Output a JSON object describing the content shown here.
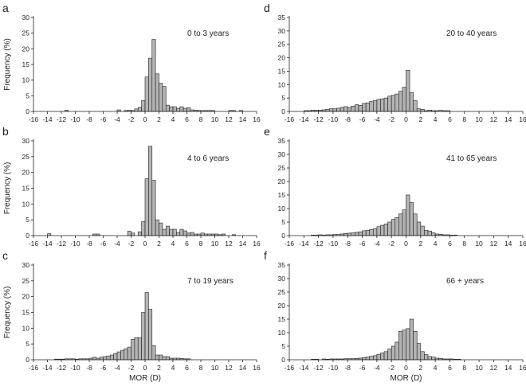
{
  "figure": {
    "xlabel": "MOR (D)",
    "ylabel": "Frequency (%)",
    "bar_color": "#b4b4b4",
    "edge_color": "#231f20"
  },
  "chart_data": [
    {
      "type": "bar",
      "panel": "a",
      "label": "0 to 3 years",
      "xlim": [
        -16,
        16
      ],
      "ylim": [
        0,
        30
      ],
      "xticks": [
        -16,
        -14,
        -12,
        -10,
        -8,
        -6,
        -4,
        -2,
        0,
        2,
        4,
        6,
        8,
        10,
        12,
        14,
        16
      ],
      "yticks": [
        0,
        5,
        10,
        15,
        20,
        25,
        30
      ],
      "bin_width": 0.5,
      "x": [
        -11.25,
        -3.75,
        -2.75,
        -2.25,
        -1.75,
        -1.25,
        -0.75,
        -0.25,
        0.25,
        0.75,
        1.25,
        1.75,
        2.25,
        2.75,
        3.25,
        3.75,
        4.25,
        4.75,
        5.25,
        5.75,
        6.25,
        6.75,
        7.25,
        7.75,
        8.25,
        8.75,
        9.25,
        9.75,
        12.25,
        12.75,
        13.75
      ],
      "values": [
        0.4,
        0.5,
        0.3,
        0.4,
        0.3,
        0.8,
        1.3,
        3.5,
        11,
        17,
        23,
        12,
        9,
        8,
        2,
        1.5,
        1.5,
        1,
        1.5,
        1,
        1.2,
        0.5,
        0.4,
        0.3,
        0.3,
        0.3,
        0.3,
        0.3,
        0.3,
        0.3,
        0.3
      ]
    },
    {
      "type": "bar",
      "panel": "b",
      "label": "4 to 6 years",
      "xlim": [
        -16,
        16
      ],
      "ylim": [
        0,
        30
      ],
      "xticks": [
        -16,
        -14,
        -12,
        -10,
        -8,
        -6,
        -4,
        -2,
        0,
        2,
        4,
        6,
        8,
        10,
        12,
        14,
        16
      ],
      "yticks": [
        0,
        5,
        10,
        15,
        20,
        25,
        30
      ],
      "bin_width": 0.5,
      "x": [
        -13.75,
        -7.25,
        -6.75,
        -2.25,
        -1.75,
        -0.75,
        -0.25,
        0.25,
        0.75,
        1.25,
        1.75,
        2.25,
        2.75,
        3.25,
        3.75,
        4.25,
        4.75,
        5.25,
        5.75,
        6.25,
        6.75,
        7.25,
        7.75,
        8.25,
        8.75,
        9.25,
        9.75,
        10.25,
        10.75,
        11.25,
        12.75
      ],
      "values": [
        0.6,
        0.5,
        0.5,
        1.4,
        0.8,
        1.2,
        4.5,
        18,
        28.3,
        17.5,
        5,
        4,
        2,
        3,
        2,
        2,
        1,
        2,
        1.5,
        0.8,
        1,
        0.5,
        0.5,
        0.8,
        0.5,
        0.5,
        0.5,
        0.5,
        0.3,
        0.5,
        0.3
      ]
    },
    {
      "type": "bar",
      "panel": "c",
      "label": "7 to 19 years",
      "xlim": [
        -16,
        16
      ],
      "ylim": [
        0,
        30
      ],
      "xticks": [
        -16,
        -14,
        -12,
        -10,
        -8,
        -6,
        -4,
        -2,
        0,
        2,
        4,
        6,
        8,
        10,
        12,
        14,
        16
      ],
      "yticks": [
        0,
        5,
        10,
        15,
        20,
        25,
        30
      ],
      "bin_width": 0.5,
      "x": [
        -12.75,
        -12.25,
        -11.75,
        -11.25,
        -10.75,
        -10.25,
        -9.75,
        -9.25,
        -8.75,
        -8.25,
        -7.75,
        -7.25,
        -6.75,
        -6.25,
        -5.75,
        -5.25,
        -4.75,
        -4.25,
        -3.75,
        -3.25,
        -2.75,
        -2.25,
        -1.75,
        -1.25,
        -0.75,
        -0.25,
        0.25,
        0.75,
        1.25,
        1.75,
        2.25,
        2.75,
        3.25,
        3.75,
        4.25,
        4.75,
        5.25,
        5.75,
        6.25
      ],
      "values": [
        0.2,
        0.2,
        0.2,
        0.3,
        0.3,
        0.3,
        0.2,
        0.3,
        0.3,
        0.3,
        0.5,
        0.8,
        0.5,
        0.8,
        1,
        1.2,
        1.5,
        2,
        2.5,
        3,
        3.5,
        4,
        6.5,
        7,
        7,
        15,
        21.3,
        16,
        4.5,
        1.5,
        1.5,
        1,
        1,
        0.5,
        0.5,
        0.5,
        0.4,
        0.3,
        0.3
      ]
    },
    {
      "type": "bar",
      "panel": "d",
      "label": "20 to 40 years",
      "xlim": [
        -16,
        16
      ],
      "ylim": [
        0,
        35
      ],
      "xticks": [
        -16,
        -14,
        -12,
        -10,
        -8,
        -6,
        -4,
        -2,
        0,
        2,
        4,
        6,
        8,
        10,
        12,
        14,
        16
      ],
      "yticks": [
        0,
        5,
        10,
        15,
        20,
        25,
        30,
        35
      ],
      "bin_width": 0.5,
      "x": [
        -13.75,
        -13.25,
        -12.75,
        -12.25,
        -11.75,
        -11.25,
        -10.75,
        -10.25,
        -9.75,
        -9.25,
        -8.75,
        -8.25,
        -7.75,
        -7.25,
        -6.75,
        -6.25,
        -5.75,
        -5.25,
        -4.75,
        -4.25,
        -3.75,
        -3.25,
        -2.75,
        -2.25,
        -1.75,
        -1.25,
        -0.75,
        -0.25,
        0.25,
        0.75,
        1.25,
        1.75,
        2.25,
        2.75,
        3.25,
        3.75,
        4.25,
        4.75,
        5.25,
        5.75
      ],
      "values": [
        0.3,
        0.3,
        0.5,
        0.5,
        0.5,
        0.6,
        0.8,
        1,
        1,
        1.2,
        1.5,
        1.8,
        1.5,
        2,
        2.5,
        2.3,
        3,
        3.2,
        3.7,
        4,
        4.5,
        4.7,
        5,
        5.7,
        6,
        6.5,
        7.5,
        9,
        15.3,
        7,
        4,
        1,
        0.8,
        0.3,
        0.5,
        0.3,
        0.3,
        0.4,
        0.3,
        0.3
      ]
    },
    {
      "type": "bar",
      "panel": "e",
      "label": "41 to 65 years",
      "xlim": [
        -16,
        16
      ],
      "ylim": [
        0,
        35
      ],
      "xticks": [
        -16,
        -14,
        -12,
        -10,
        -8,
        -6,
        -4,
        -2,
        0,
        2,
        4,
        6,
        8,
        10,
        12,
        14,
        16
      ],
      "yticks": [
        0,
        5,
        10,
        15,
        20,
        25,
        30,
        35
      ],
      "bin_width": 0.5,
      "x": [
        -12.75,
        -12.25,
        -11.75,
        -11.25,
        -10.75,
        -10.25,
        -9.75,
        -9.25,
        -8.75,
        -8.25,
        -7.75,
        -7.25,
        -6.75,
        -6.25,
        -5.75,
        -5.25,
        -4.75,
        -4.25,
        -3.75,
        -3.25,
        -2.75,
        -2.25,
        -1.75,
        -1.25,
        -0.75,
        -0.25,
        0.25,
        0.75,
        1.25,
        1.75,
        2.25,
        2.75,
        3.25,
        3.75,
        4.25,
        4.75,
        5.25,
        5.75,
        6.25,
        6.75
      ],
      "values": [
        0.2,
        0.2,
        0.3,
        0.2,
        0.3,
        0.3,
        0.4,
        0.4,
        0.6,
        0.8,
        0.9,
        1,
        1.2,
        1.4,
        1.8,
        2,
        2.2,
        2.5,
        3.3,
        3.8,
        4.3,
        5,
        6,
        6.7,
        8,
        9.5,
        15,
        12.2,
        8,
        5,
        3.5,
        2,
        1.7,
        1,
        0.6,
        0.5,
        0.3,
        0.3,
        0.2,
        0.2
      ]
    },
    {
      "type": "bar",
      "panel": "f",
      "label": "66 + years",
      "xlim": [
        -16,
        16
      ],
      "ylim": [
        0,
        35
      ],
      "xticks": [
        -16,
        -14,
        -12,
        -10,
        -8,
        -6,
        -4,
        -2,
        0,
        2,
        4,
        6,
        8,
        10,
        12,
        14,
        16
      ],
      "yticks": [
        0,
        5,
        10,
        15,
        20,
        25,
        30,
        35
      ],
      "bin_width": 0.5,
      "x": [
        -12.75,
        -12.25,
        -11.25,
        -10.75,
        -10.25,
        -9.75,
        -9.25,
        -8.75,
        -8.25,
        -7.75,
        -7.25,
        -6.75,
        -6.25,
        -5.75,
        -5.25,
        -4.75,
        -4.25,
        -3.75,
        -3.25,
        -2.75,
        -2.25,
        -1.75,
        -1.25,
        -0.75,
        -0.25,
        0.25,
        0.75,
        1.25,
        1.75,
        2.25,
        2.75,
        3.25,
        3.75,
        4.25,
        4.75,
        5.25,
        5.75,
        6.25,
        6.75,
        7.25
      ],
      "values": [
        0.2,
        0.2,
        0.3,
        0.2,
        0.3,
        0.3,
        0.3,
        0.3,
        0.4,
        0.4,
        0.4,
        0.5,
        0.6,
        0.8,
        1,
        1.3,
        1.5,
        2,
        2.5,
        3,
        4,
        5,
        6.5,
        10.5,
        11,
        11.5,
        15,
        10.5,
        6,
        3,
        2,
        1.2,
        1,
        0.6,
        0.5,
        0.3,
        0.3,
        0.3,
        0.2,
        0.2
      ]
    }
  ]
}
